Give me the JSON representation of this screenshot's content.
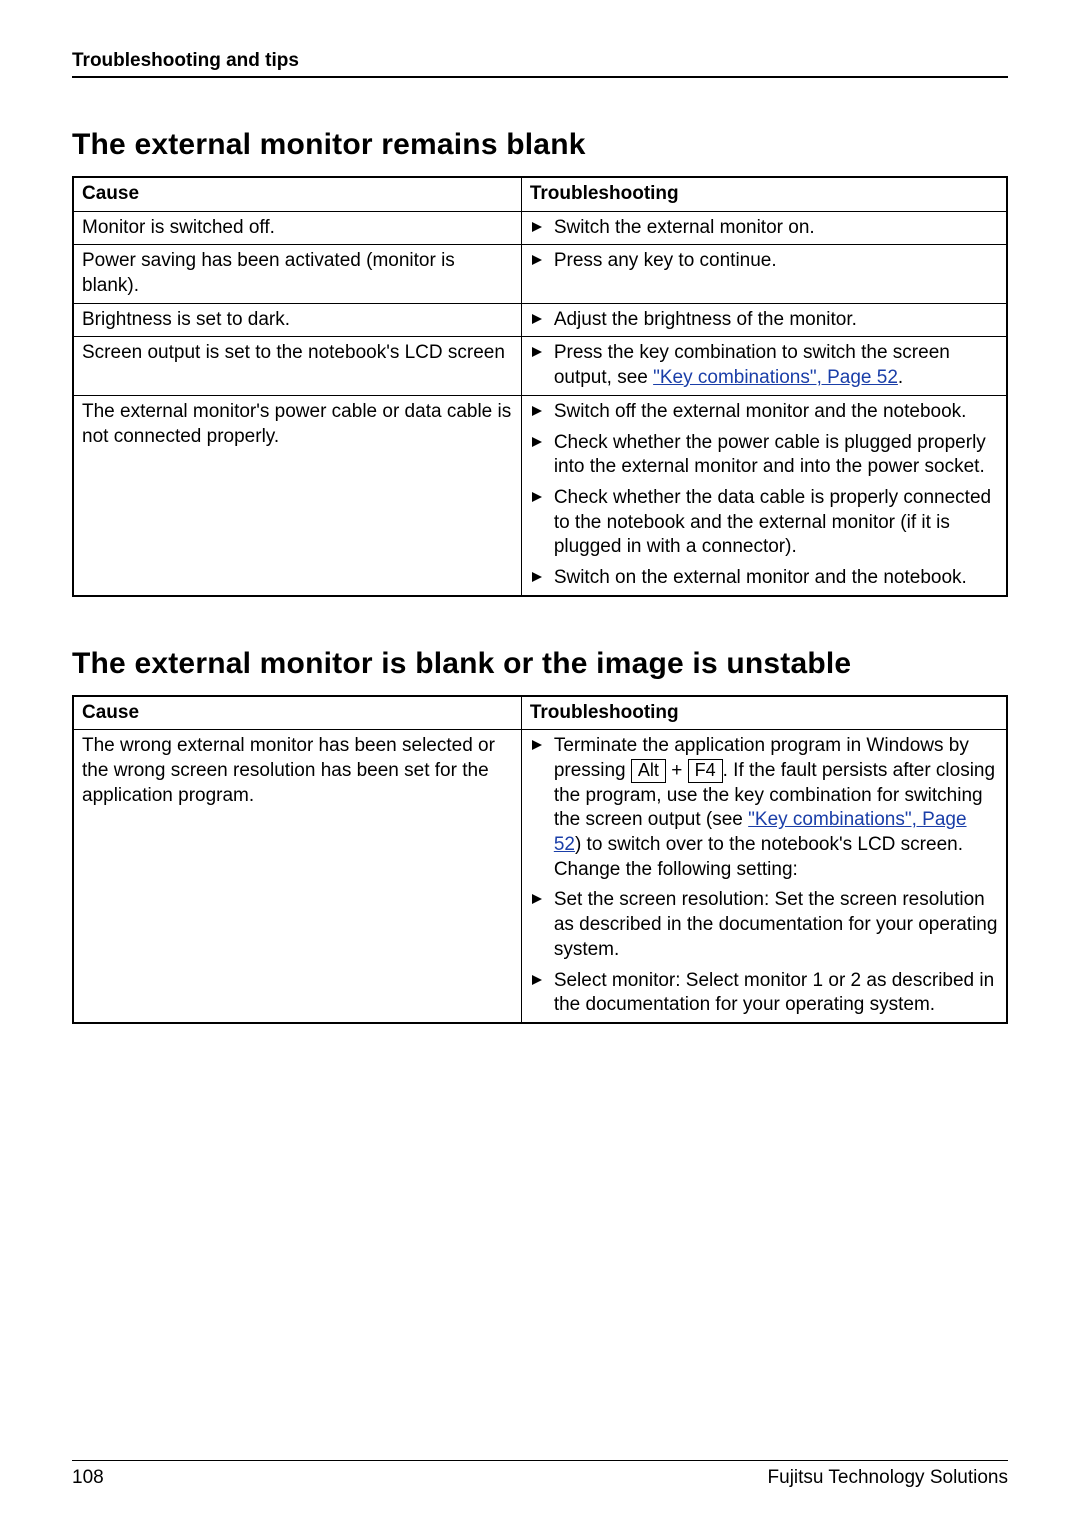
{
  "header": {
    "title": "Troubleshooting and tips"
  },
  "section1": {
    "title": "The external monitor remains blank",
    "col_cause": "Cause",
    "col_ts": "Troubleshooting",
    "rows": [
      {
        "cause": "Monitor is switched off.",
        "steps": [
          {
            "text": "Switch the external monitor on."
          }
        ]
      },
      {
        "cause": "Power saving has been activated (monitor is blank).",
        "steps": [
          {
            "text": "Press any key to continue."
          }
        ]
      },
      {
        "cause": "Brightness is set to dark.",
        "steps": [
          {
            "text": "Adjust the brightness of the monitor."
          }
        ]
      },
      {
        "cause": "Screen output is set to the notebook's LCD screen",
        "steps": [
          {
            "text_pre": "Press the key combination to switch the screen output, see ",
            "xref": "\"Key combinations\", Page 52",
            "text_post": "."
          }
        ]
      },
      {
        "cause": "The external monitor's power cable or data cable is not connected properly.",
        "steps": [
          {
            "text": "Switch off the external monitor and the notebook."
          },
          {
            "text": "Check whether the power cable is plugged properly into the external monitor and into the power socket."
          },
          {
            "text": "Check whether the data cable is properly connected to the notebook and the external monitor (if it is plugged in with a connector)."
          },
          {
            "text": "Switch on the external monitor and the notebook."
          }
        ]
      }
    ]
  },
  "section2": {
    "title": "The external monitor is blank or the image is unstable",
    "col_cause": "Cause",
    "col_ts": "Troubleshooting",
    "rows": [
      {
        "cause": "The wrong external monitor has been selected or the wrong screen resolution has been set for the application program.",
        "steps": [
          {
            "text_pre": "Terminate the application program in Windows by pressing ",
            "key1": "Alt",
            "plus": " + ",
            "key2": "F4",
            "text_mid": ". If the fault persists after closing the program, use the key combination for switching the screen output (see ",
            "xref": "\"Key combinations\", Page 52",
            "text_post": ") to switch over to the notebook's LCD screen. Change the following setting:"
          },
          {
            "text": "Set the screen resolution: Set the screen resolution as described in the documentation for your operating system."
          },
          {
            "text": "Select monitor: Select monitor 1 or 2 as described in the documentation for your operating system."
          }
        ]
      }
    ]
  },
  "footer": {
    "page": "108",
    "right": "Fujitsu Technology Solutions"
  },
  "style": {
    "arrow_color": "#000000",
    "link_color": "#1a3ea8"
  }
}
